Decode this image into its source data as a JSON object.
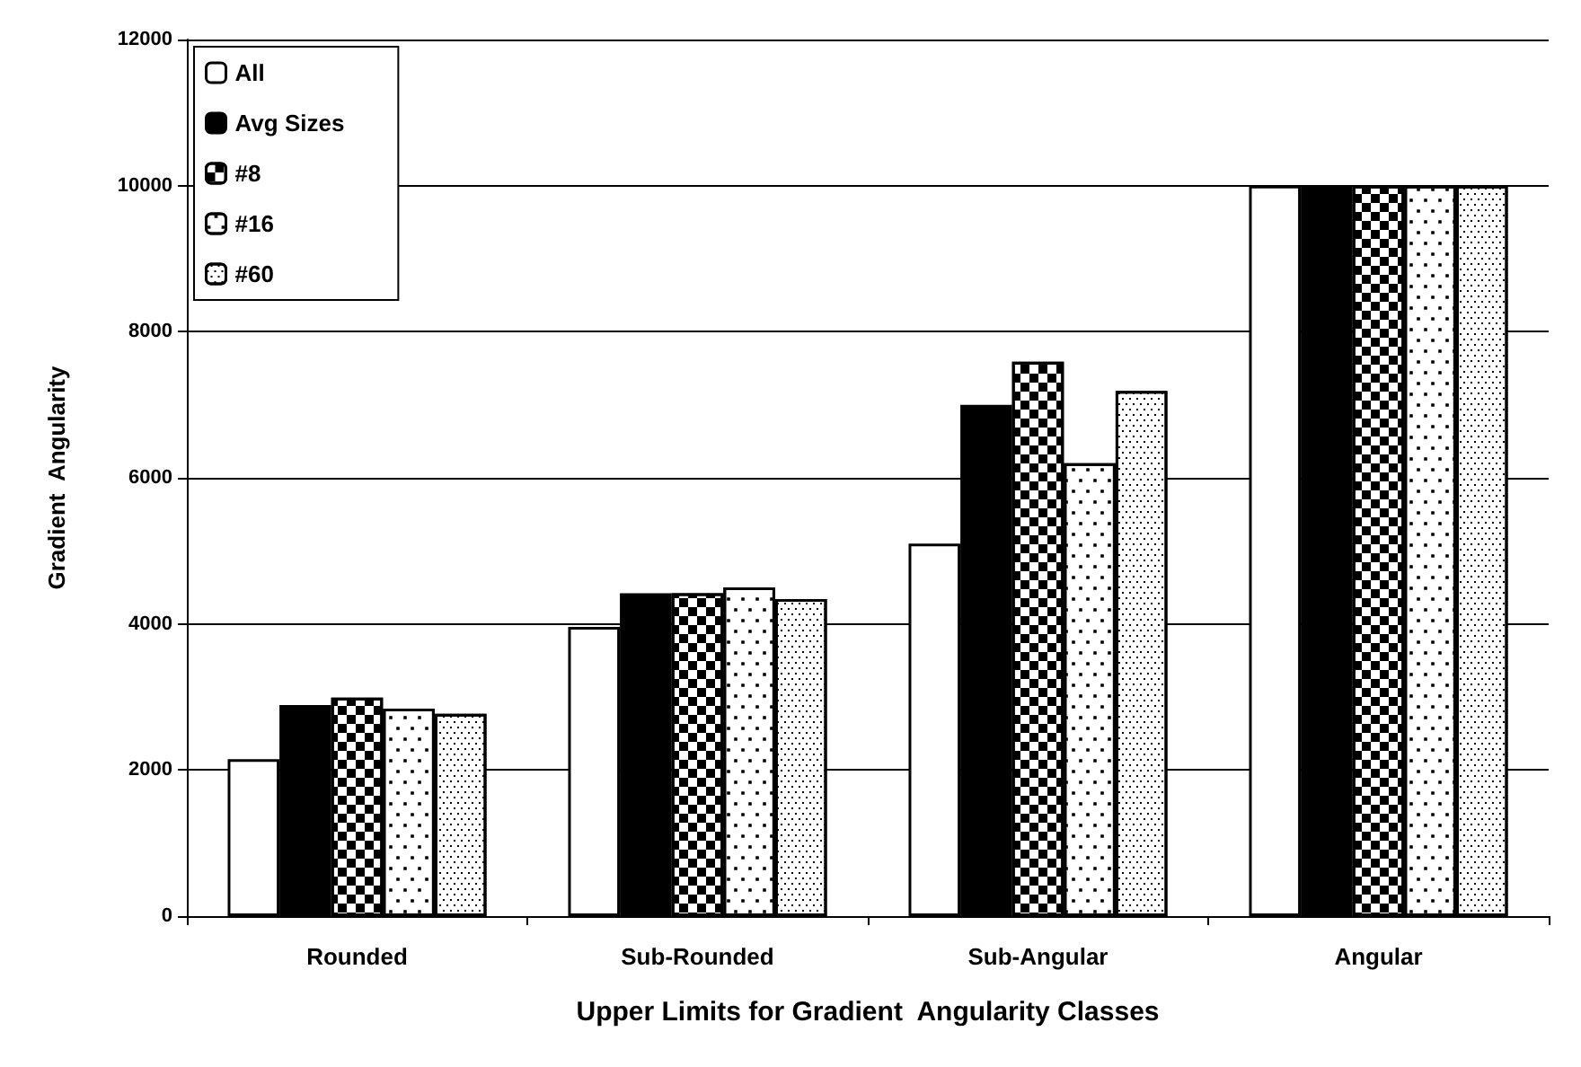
{
  "chart_data": {
    "type": "bar",
    "xlabel": "Upper Limits for Gradient  Angularity Classes",
    "ylabel": "Gradient  Angularity",
    "categories": [
      "Rounded",
      "Sub-Rounded",
      "Sub-Angular",
      "Angular"
    ],
    "series": [
      {
        "name": "All",
        "color": "#ffffff",
        "values": [
          2150,
          3960,
          5100,
          10000
        ]
      },
      {
        "name": "Avg Sizes",
        "color": "#000000",
        "values": [
          2890,
          4420,
          7000,
          10000
        ]
      },
      {
        "name": "#8",
        "color": "#ffffff",
        "values": [
          2990,
          4420,
          7590,
          10000
        ]
      },
      {
        "name": "#16",
        "color": "#ffffff",
        "values": [
          2840,
          4500,
          6200,
          10000
        ]
      },
      {
        "name": "#60",
        "color": "#ffffff",
        "values": [
          2770,
          4340,
          7190,
          10000
        ]
      }
    ],
    "ylim": [
      0,
      12000
    ],
    "yticks": [
      0,
      2000,
      4000,
      6000,
      8000,
      10000,
      12000
    ],
    "grid": "y",
    "legend": "top left"
  }
}
